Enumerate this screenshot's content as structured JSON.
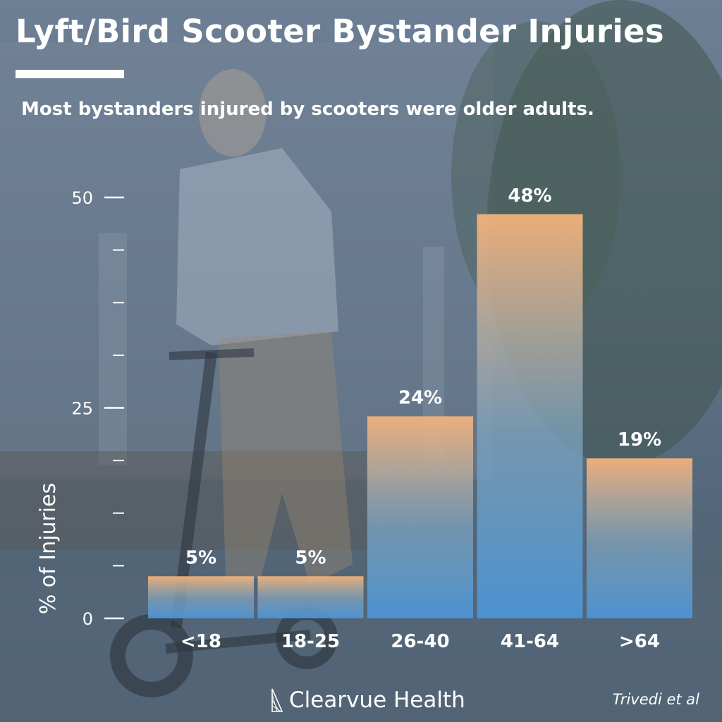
{
  "header": {
    "title": "Lyft/Bird Scooter Bystander Injuries",
    "subtitle": "Most bystanders injured by scooters were older adults."
  },
  "footer": {
    "brand": "Clearvue Health",
    "citation": "Trivedi et al"
  },
  "colors": {
    "bar_top": "#f3b27a",
    "bar_bottom": "#4b94d6",
    "text": "#ffffff"
  },
  "chart_data": {
    "type": "bar",
    "categories": [
      "<18",
      "18-25",
      "26-40",
      "41-64",
      ">64"
    ],
    "values": [
      5,
      5,
      24,
      48,
      19
    ],
    "data_labels": [
      "5%",
      "5%",
      "24%",
      "48%",
      "19%"
    ],
    "ylabel": "% of Injuries",
    "yticks": [
      0,
      25,
      50
    ],
    "ylim": [
      0,
      50
    ],
    "minor_tick_step": 6.25,
    "grid": false
  }
}
